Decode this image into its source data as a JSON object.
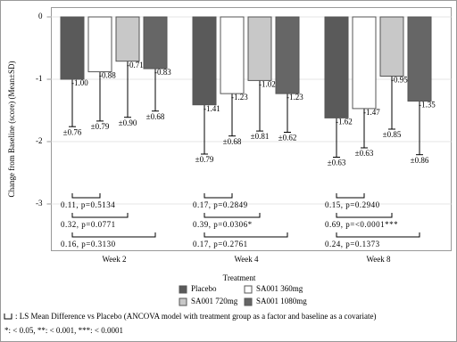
{
  "chart_data": {
    "type": "bar",
    "y_label": "Change from Baseline (score) (Mean±SD)",
    "categories": [
      "Week 2",
      "Week 4",
      "Week 8"
    ],
    "ylim": [
      -3.75,
      0.15
    ],
    "yticks": [
      0,
      -1,
      -2,
      -3
    ],
    "grid": true,
    "series": [
      {
        "name": "Placebo",
        "color": "#5a5a5a",
        "values": [
          -1.0,
          -1.41,
          -1.62
        ],
        "value_labels": [
          "-1.00",
          "-1.41",
          "-1.62"
        ],
        "errors": [
          0.76,
          0.79,
          0.63
        ],
        "error_labels": [
          "±0.76",
          "±0.79",
          "±0.63"
        ]
      },
      {
        "name": "SA001 360mg",
        "color": "#ffffff",
        "values": [
          -0.88,
          -1.23,
          -1.47
        ],
        "value_labels": [
          "-0.88",
          "-1.23",
          "-1.47"
        ],
        "errors": [
          0.79,
          0.68,
          0.63
        ],
        "error_labels": [
          "±0.79",
          "±0.68",
          "±0.63"
        ]
      },
      {
        "name": "SA001 720mg",
        "color": "#c8c8c8",
        "values": [
          -0.71,
          -1.02,
          -0.95
        ],
        "value_labels": [
          "-0.71",
          "-1.02",
          "-0.95"
        ],
        "errors": [
          0.9,
          0.81,
          0.85
        ],
        "error_labels": [
          "±0.90",
          "±0.81",
          "±0.85"
        ]
      },
      {
        "name": "SA001 1080mg",
        "color": "#666666",
        "values": [
          -0.83,
          -1.23,
          -1.35
        ],
        "value_labels": [
          "-0.83",
          "-1.23",
          "-1.35"
        ],
        "errors": [
          0.68,
          0.62,
          0.86
        ],
        "error_labels": [
          "±0.68",
          "±0.62",
          "±0.86"
        ]
      }
    ],
    "comparisons": [
      [
        "0.11, p=0.5134",
        "0.32, p=0.0771",
        "0.16, p=0.3130"
      ],
      [
        "0.17, p=0.2849",
        "0.39, p=0.0306*",
        "0.17, p=0.2761"
      ],
      [
        "0.15, p=0.2940",
        "0.69, p=<0.0001***",
        "0.24, p=0.1373"
      ]
    ],
    "legend_title": "Treatment",
    "footnotes": [
      ": LS Mean Difference vs Placebo (ANCOVA model with treatment group as a factor and baseline as a covariate)",
      "*: < 0.05, **: < 0.001, ***: < 0.0001"
    ]
  }
}
